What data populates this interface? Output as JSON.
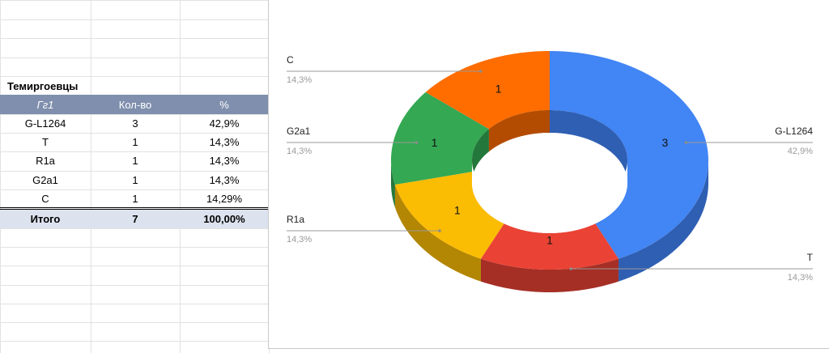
{
  "sheet": {
    "table_title": "Темиргоевцы",
    "headers": [
      "Гг1",
      "Кол-во",
      "%"
    ],
    "rows": [
      [
        "G-L1264",
        "3",
        "42,9%"
      ],
      [
        "T",
        "1",
        "14,3%"
      ],
      [
        "R1a",
        "1",
        "14,3%"
      ],
      [
        "G2a1",
        "1",
        "14,3%"
      ],
      [
        "C",
        "1",
        "14,29%"
      ]
    ],
    "total": [
      "Итого",
      "7",
      "100,00%"
    ]
  },
  "chart_data": {
    "type": "pie",
    "style": "3d-donut",
    "slices": [
      {
        "label": "G-L1264",
        "value": 3,
        "percent_label": "42,9%",
        "color": "#4285f4",
        "dark": "#2f5fb3"
      },
      {
        "label": "T",
        "value": 1,
        "percent_label": "14,3%",
        "color": "#ea4335",
        "dark": "#a52f25"
      },
      {
        "label": "R1a",
        "value": 1,
        "percent_label": "14,3%",
        "color": "#fbbc04",
        "dark": "#b38603"
      },
      {
        "label": "G2a1",
        "value": 1,
        "percent_label": "14,3%",
        "color": "#34a853",
        "dark": "#24773b"
      },
      {
        "label": "C",
        "value": 1,
        "percent_label": "14,3%",
        "color": "#ff6d01",
        "dark": "#b34c01"
      }
    ]
  }
}
